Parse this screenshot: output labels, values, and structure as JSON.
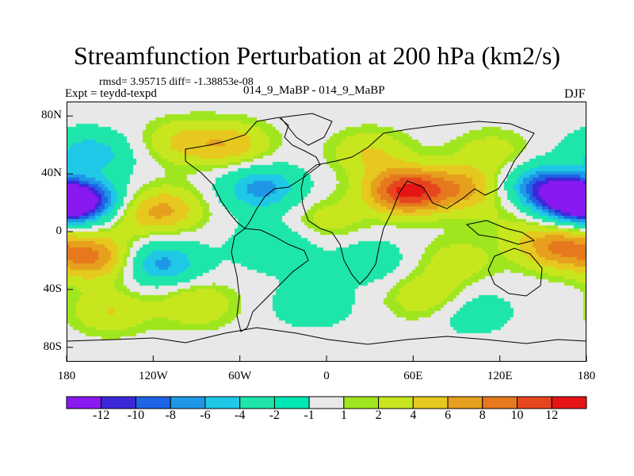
{
  "title": "Streamfunction Perturbation at 200 hPa (km2/s)",
  "stats": "rmsd= 3.95715 diff= -1.38853e-08",
  "experiment": "Expt = teydd-texpd",
  "case": "014_9_MaBP - 014_9_MaBP",
  "season": "DJF",
  "axes": {
    "y_ticks": [
      "80N",
      "40N",
      "0",
      "40S",
      "80S"
    ],
    "x_ticks": [
      "180",
      "120W",
      "60W",
      "0",
      "60E",
      "120E",
      "180"
    ]
  },
  "colorbar": {
    "labels": [
      "-12",
      "-10",
      "-8",
      "-6",
      "-4",
      "-2",
      "-1",
      "1",
      "2",
      "4",
      "6",
      "8",
      "10",
      "12"
    ],
    "colors": [
      "#8a18f0",
      "#3c28d8",
      "#1e64e6",
      "#1e98e6",
      "#1ec8e6",
      "#1ee6aa",
      "#e8e8e8",
      "#a0e61e",
      "#c8e61e",
      "#e6c81e",
      "#e6a01e",
      "#e6781e",
      "#e6461e",
      "#e61414"
    ]
  },
  "colors": {
    "background": "#ffffff",
    "neutral": "#e8e8e8"
  },
  "field_centers": [
    {
      "lon": -170,
      "lat": 22,
      "value": -12
    },
    {
      "lon": -165,
      "lat": 52,
      "value": -7
    },
    {
      "lon": -160,
      "lat": -18,
      "value": 8
    },
    {
      "lon": -175,
      "lat": 38,
      "value": 5
    },
    {
      "lon": -140,
      "lat": 10,
      "value": 2
    },
    {
      "lon": -113,
      "lat": 15,
      "value": 6
    },
    {
      "lon": -115,
      "lat": -22,
      "value": -7
    },
    {
      "lon": -65,
      "lat": 60,
      "value": 5
    },
    {
      "lon": -100,
      "lat": 62,
      "value": 4
    },
    {
      "lon": -45,
      "lat": 30,
      "value": -7
    },
    {
      "lon": -35,
      "lat": -10,
      "value": -4
    },
    {
      "lon": -10,
      "lat": -50,
      "value": -3
    },
    {
      "lon": -90,
      "lat": -50,
      "value": 4
    },
    {
      "lon": 0,
      "lat": 8,
      "value": 3
    },
    {
      "lon": 55,
      "lat": 28,
      "value": 12
    },
    {
      "lon": 95,
      "lat": 30,
      "value": 6
    },
    {
      "lon": 30,
      "lat": 55,
      "value": 4
    },
    {
      "lon": 30,
      "lat": -20,
      "value": -3
    },
    {
      "lon": 90,
      "lat": -20,
      "value": 3
    },
    {
      "lon": 70,
      "lat": -45,
      "value": 4
    },
    {
      "lon": 115,
      "lat": 55,
      "value": 3
    },
    {
      "lon": 130,
      "lat": 10,
      "value": 2
    },
    {
      "lon": 150,
      "lat": 32,
      "value": -8
    },
    {
      "lon": 172,
      "lat": 22,
      "value": -12
    },
    {
      "lon": 160,
      "lat": -10,
      "value": 8
    },
    {
      "lon": 100,
      "lat": -55,
      "value": -3
    },
    {
      "lon": -150,
      "lat": -55,
      "value": 4
    }
  ]
}
